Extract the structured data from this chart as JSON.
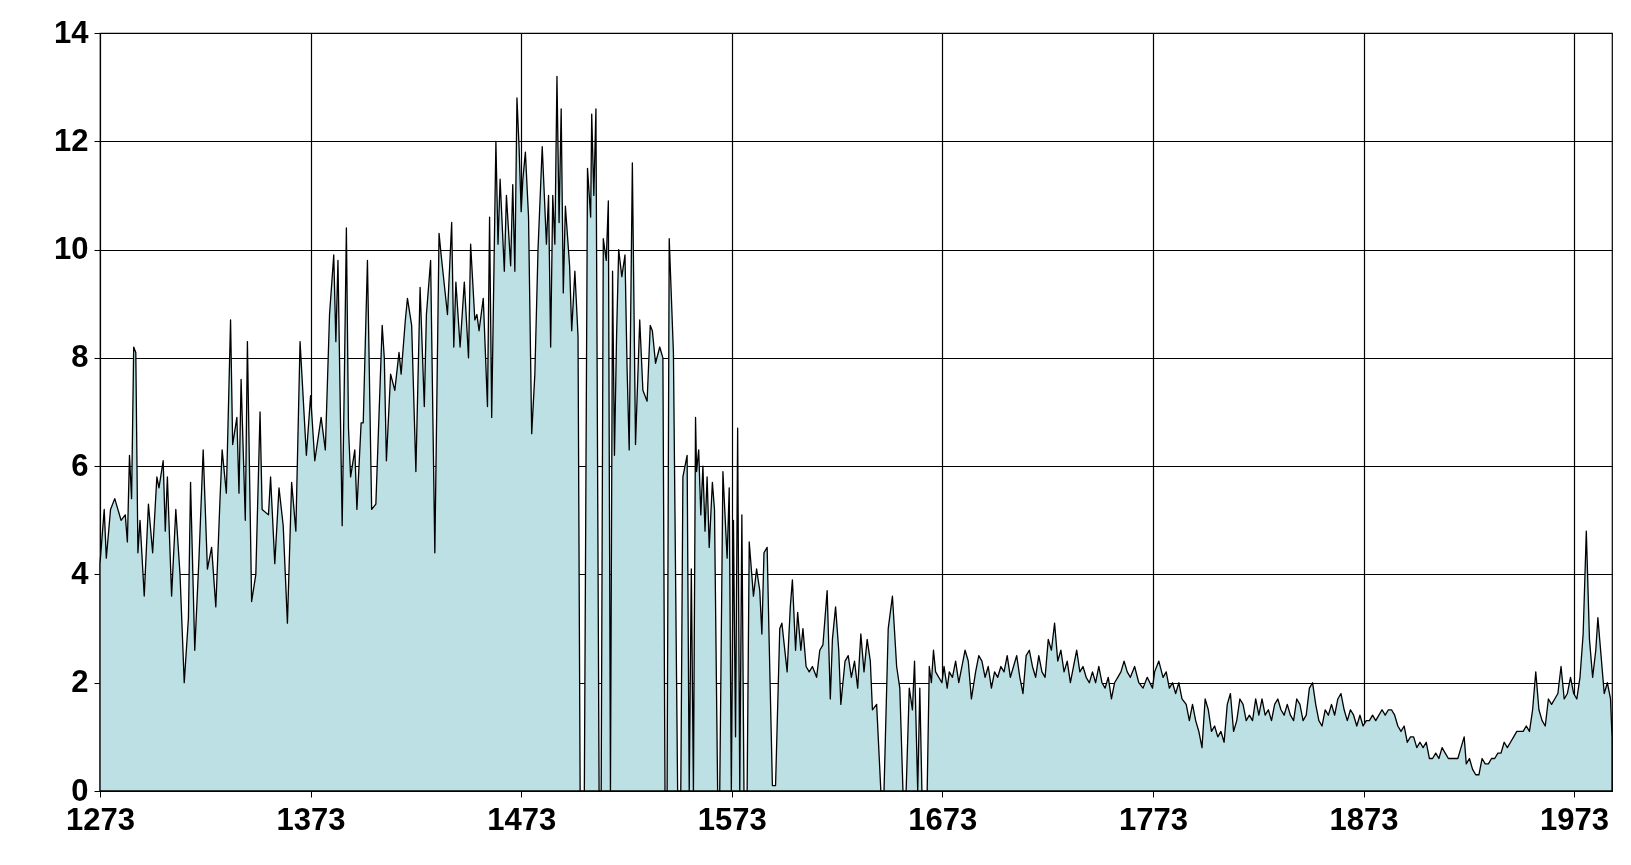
{
  "chart_data": {
    "type": "area",
    "xlim": [
      1273,
      1991
    ],
    "ylim": [
      0,
      14
    ],
    "xticks": [
      1273,
      1373,
      1473,
      1573,
      1673,
      1773,
      1873,
      1973
    ],
    "yticks": [
      0,
      2,
      4,
      6,
      8,
      10,
      12,
      14
    ],
    "grid": true,
    "x": [
      1273,
      1275,
      1276,
      1278,
      1280,
      1283,
      1285,
      1286,
      1287,
      1288,
      1289,
      1290,
      1291,
      1292,
      1294,
      1296,
      1298,
      1300,
      1301,
      1303,
      1304,
      1305,
      1307,
      1309,
      1311,
      1313,
      1315,
      1316,
      1318,
      1320,
      1322,
      1324,
      1326,
      1328,
      1330,
      1331,
      1333,
      1335,
      1336,
      1338,
      1339,
      1340,
      1342,
      1343,
      1345,
      1347,
      1349,
      1350,
      1353,
      1354,
      1356,
      1358,
      1360,
      1362,
      1364,
      1366,
      1368,
      1371,
      1373,
      1375,
      1378,
      1380,
      1382,
      1384,
      1385,
      1386,
      1388,
      1389,
      1390,
      1391,
      1392,
      1394,
      1395,
      1397,
      1398,
      1400,
      1402,
      1404,
      1407,
      1408,
      1409,
      1411,
      1413,
      1415,
      1416,
      1418,
      1419,
      1421,
      1423,
      1425,
      1427,
      1428,
      1430,
      1432,
      1434,
      1435,
      1438,
      1440,
      1441,
      1442,
      1444,
      1446,
      1448,
      1449,
      1451,
      1452,
      1453,
      1455,
      1457,
      1458,
      1459,
      1461,
      1462,
      1463,
      1465,
      1466,
      1468,
      1469,
      1470,
      1471,
      1472,
      1473,
      1473.8,
      1475,
      1476.5,
      1478,
      1479.5,
      1481,
      1483,
      1485,
      1486,
      1487,
      1488,
      1489,
      1490,
      1491,
      1492,
      1493,
      1494,
      1496,
      1497,
      1498.5,
      1500,
      1501,
      1503,
      1504.5,
      1506,
      1506.5,
      1507.5,
      1508.5,
      1510,
      1511,
      1512,
      1513.4,
      1514.4,
      1515.4,
      1516.4,
      1517.3,
      1518.3,
      1519.3,
      1520.8,
      1522.3,
      1523.3,
      1524.3,
      1525.8,
      1527.3,
      1529.3,
      1530.8,
      1532.8,
      1534.3,
      1535.3,
      1536.8,
      1538.8,
      1540.3,
      1541.3,
      1542.3,
      1543.3,
      1545.3,
      1547.3,
      1548.8,
      1549.8,
      1551.8,
      1552.8,
      1553.8,
      1554.8,
      1555.8,
      1556.3,
      1557.3,
      1558.3,
      1559.3,
      1560.3,
      1561.3,
      1562.3,
      1563.8,
      1564.8,
      1566.3,
      1567.3,
      1568.8,
      1570.8,
      1571.8,
      1572.8,
      1573.8,
      1574.8,
      1575.8,
      1576.8,
      1577.8,
      1578.8,
      1580.3,
      1581.3,
      1583.3,
      1584.8,
      1586.3,
      1587.3,
      1588.3,
      1589.8,
      1590.8,
      1592.3,
      1593.8,
      1595.8,
      1596.8,
      1599.3,
      1600.8,
      1601.8,
      1603.3,
      1604.3,
      1605.8,
      1606.8,
      1608.3,
      1609.8,
      1611.3,
      1613.3,
      1614.8,
      1616.3,
      1618.3,
      1619.8,
      1620.8,
      1622.3,
      1623.8,
      1624.8,
      1626.8,
      1628.3,
      1629.8,
      1631.3,
      1632.8,
      1634.3,
      1635.8,
      1637.3,
      1638.8,
      1639.8,
      1641.8,
      1643.8,
      1645.3,
      1647.3,
      1649.3,
      1651.3,
      1652.8,
      1654.3,
      1655.8,
      1657.3,
      1658.8,
      1659.8,
      1661.3,
      1662.3,
      1663.3,
      1664.3,
      1665.8,
      1666.8,
      1667.8,
      1668.8,
      1669.8,
      1672.8,
      1673.8,
      1675.3,
      1676.3,
      1677.8,
      1679.3,
      1680.8,
      1682.3,
      1683.8,
      1685.3,
      1686.8,
      1688.8,
      1690.3,
      1691.8,
      1693.3,
      1694.8,
      1696.3,
      1697.8,
      1699.3,
      1700.8,
      1702.3,
      1703.8,
      1705.3,
      1706.8,
      1708.3,
      1709.8,
      1711.3,
      1712.8,
      1714.3,
      1715.8,
      1717.3,
      1718.8,
      1720.3,
      1721.8,
      1723.3,
      1724.8,
      1726.3,
      1727.8,
      1729.3,
      1730.8,
      1732.3,
      1733.8,
      1735.3,
      1736.8,
      1738.3,
      1739.8,
      1741.3,
      1742.8,
      1744.3,
      1745.8,
      1747.3,
      1748.8,
      1750.3,
      1751.8,
      1753.3,
      1754.8,
      1756.3,
      1757.8,
      1759.3,
      1760.8,
      1762.3,
      1764.3,
      1766.3,
      1768.3,
      1770.3,
      1772.8,
      1773.8,
      1775.8,
      1777.8,
      1779.3,
      1780.8,
      1782.3,
      1783.8,
      1785.3,
      1786.8,
      1788.8,
      1790.3,
      1791.8,
      1793.3,
      1794.8,
      1796.3,
      1797.8,
      1799.3,
      1800.8,
      1802.3,
      1803.8,
      1805.3,
      1806.8,
      1808.3,
      1809.8,
      1811.3,
      1812.8,
      1814.3,
      1815.8,
      1817.3,
      1818.8,
      1820.3,
      1821.8,
      1823.3,
      1824.8,
      1826.3,
      1827.8,
      1829.3,
      1830.8,
      1832.3,
      1833.8,
      1835.3,
      1836.8,
      1838.3,
      1839.8,
      1841.3,
      1842.8,
      1844.3,
      1845.8,
      1847.3,
      1848.8,
      1850.3,
      1851.8,
      1853.3,
      1854.8,
      1856.3,
      1857.8,
      1859.3,
      1860.8,
      1862.3,
      1863.8,
      1865.3,
      1866.8,
      1868.3,
      1869.8,
      1871.3,
      1872.8,
      1874.3,
      1875.8,
      1877.3,
      1878.8,
      1880.3,
      1881.8,
      1883.3,
      1884.8,
      1886.3,
      1887.8,
      1889.3,
      1890.8,
      1892.3,
      1893.8,
      1895.3,
      1896.8,
      1898.3,
      1899.8,
      1901.3,
      1902.8,
      1904.3,
      1905.8,
      1907.3,
      1908.8,
      1910.3,
      1911.8,
      1913.3,
      1914.8,
      1916.3,
      1917.8,
      1919.3,
      1920.8,
      1921.8,
      1923.3,
      1924.8,
      1926.3,
      1927.8,
      1929.3,
      1930.8,
      1932.3,
      1933.8,
      1935.3,
      1936.8,
      1938.3,
      1939.8,
      1941.3,
      1942.8,
      1944.3,
      1945.8,
      1947.3,
      1948.8,
      1950.3,
      1951.8,
      1953.3,
      1954.8,
      1956.3,
      1957.8,
      1959.3,
      1960.8,
      1962.3,
      1963.8,
      1965.3,
      1966.8,
      1968.3,
      1969.8,
      1971.3,
      1972.8,
      1974.3,
      1975.8,
      1977.3,
      1978.8,
      1980.3,
      1981.8,
      1983.3,
      1984.3,
      1985.8,
      1987.3,
      1988.8,
      1990.3,
      1991
    ],
    "values": [
      4.2,
      5.2,
      4.3,
      5.2,
      5.4,
      5.0,
      5.1,
      4.6,
      6.2,
      5.4,
      8.2,
      8.1,
      4.4,
      5.0,
      3.6,
      5.3,
      4.4,
      5.8,
      5.6,
      6.1,
      4.8,
      5.8,
      3.6,
      5.2,
      4.0,
      2.0,
      3.2,
      5.7,
      2.6,
      4.3,
      6.3,
      4.1,
      4.5,
      3.4,
      5.4,
      6.3,
      5.5,
      8.7,
      6.4,
      6.9,
      5.5,
      7.6,
      5.0,
      8.3,
      3.5,
      4.0,
      7.0,
      5.2,
      5.1,
      5.8,
      4.2,
      5.6,
      4.9,
      3.1,
      5.7,
      4.8,
      8.3,
      6.2,
      7.3,
      6.1,
      6.9,
      6.3,
      8.8,
      9.9,
      8.3,
      9.8,
      4.9,
      7.5,
      10.4,
      6.7,
      5.8,
      6.3,
      5.2,
      6.8,
      6.8,
      9.8,
      5.2,
      5.3,
      8.6,
      8.0,
      6.1,
      7.7,
      7.4,
      8.1,
      7.7,
      8.7,
      9.1,
      8.6,
      5.9,
      9.3,
      7.1,
      8.8,
      9.8,
      4.4,
      10.3,
      9.9,
      8.8,
      10.5,
      8.2,
      9.4,
      8.2,
      9.4,
      8.0,
      10.1,
      8.7,
      8.8,
      8.5,
      9.1,
      7.1,
      10.6,
      6.9,
      12.0,
      10.1,
      11.3,
      9.6,
      11.0,
      9.7,
      11.2,
      9.6,
      12.8,
      11.9,
      10.7,
      11.3,
      11.8,
      10.6,
      6.6,
      7.7,
      10.0,
      11.9,
      10.1,
      11.0,
      8.2,
      11.0,
      10.1,
      13.2,
      10.5,
      12.6,
      9.2,
      10.8,
      9.7,
      8.5,
      9.6,
      8.4,
      0,
      0,
      11.5,
      10.6,
      12.5,
      11.0,
      12.6,
      0,
      0,
      10.2,
      9.8,
      10.9,
      0,
      9.6,
      6.2,
      8.4,
      10.0,
      9.5,
      9.9,
      7.8,
      6.3,
      11.6,
      6.4,
      8.7,
      7.4,
      7.2,
      8.6,
      8.5,
      7.9,
      8.2,
      8.0,
      0,
      0,
      10.2,
      8.1,
      0,
      0,
      5.8,
      6.2,
      0,
      4.1,
      0,
      6.9,
      5.9,
      6.3,
      5.1,
      6.0,
      4.8,
      5.8,
      4.5,
      5.7,
      5.2,
      0,
      0,
      5.9,
      4.3,
      5.6,
      0,
      5.0,
      1.0,
      6.7,
      0,
      5.1,
      0,
      0,
      4.6,
      3.6,
      4.1,
      3.7,
      2.9,
      4.4,
      4.5,
      2.7,
      0.1,
      0.1,
      3.0,
      3.1,
      2.2,
      3.4,
      3.9,
      2.6,
      3.3,
      2.6,
      3.0,
      2.3,
      2.2,
      2.3,
      2.1,
      2.6,
      2.7,
      3.7,
      1.7,
      2.8,
      3.4,
      2.6,
      1.6,
      2.4,
      2.5,
      2.1,
      2.4,
      1.9,
      2.9,
      2.2,
      2.8,
      2.4,
      1.5,
      1.6,
      0,
      0,
      3.0,
      3.6,
      2.3,
      1.9,
      0,
      0,
      1.9,
      1.5,
      2.4,
      0,
      1.9,
      0,
      0,
      0,
      2.3,
      2.0,
      2.6,
      2.2,
      2.0,
      2.3,
      1.9,
      2.2,
      2.1,
      2.4,
      2.0,
      2.3,
      2.6,
      2.4,
      1.7,
      2.2,
      2.5,
      2.4,
      2.1,
      2.3,
      1.9,
      2.2,
      2.1,
      2.3,
      2.2,
      2.5,
      2.1,
      2.3,
      2.5,
      2.1,
      1.8,
      2.5,
      2.6,
      2.3,
      2.1,
      2.5,
      2.2,
      2.1,
      2.8,
      2.6,
      3.1,
      2.4,
      2.6,
      2.2,
      2.4,
      2.0,
      2.3,
      2.6,
      2.2,
      2.3,
      2.1,
      2.0,
      2.2,
      2.0,
      2.3,
      2.0,
      1.9,
      2.1,
      1.7,
      2.0,
      2.1,
      2.2,
      2.4,
      2.2,
      2.1,
      2.3,
      2.0,
      1.9,
      2.1,
      1.9,
      2.2,
      2.4,
      2.1,
      2.2,
      1.9,
      2.0,
      1.8,
      2.0,
      1.7,
      1.6,
      1.3,
      1.6,
      1.3,
      1.1,
      0.8,
      1.7,
      1.5,
      1.1,
      1.2,
      1.0,
      1.1,
      0.9,
      1.6,
      1.8,
      1.1,
      1.3,
      1.7,
      1.6,
      1.3,
      1.4,
      1.3,
      1.7,
      1.4,
      1.7,
      1.4,
      1.5,
      1.3,
      1.6,
      1.7,
      1.5,
      1.4,
      1.6,
      1.4,
      1.3,
      1.7,
      1.6,
      1.3,
      1.4,
      1.9,
      2.0,
      1.6,
      1.3,
      1.2,
      1.5,
      1.4,
      1.6,
      1.4,
      1.7,
      1.8,
      1.5,
      1.3,
      1.5,
      1.4,
      1.2,
      1.4,
      1.2,
      1.3,
      1.3,
      1.4,
      1.3,
      1.4,
      1.5,
      1.4,
      1.5,
      1.5,
      1.4,
      1.2,
      1.1,
      1.2,
      0.9,
      1.0,
      1.0,
      0.8,
      0.9,
      0.8,
      0.9,
      0.6,
      0.6,
      0.7,
      0.6,
      0.8,
      0.7,
      0.6,
      0.6,
      0.6,
      0.6,
      0.8,
      1.0,
      0.5,
      0.6,
      0.4,
      0.3,
      0.3,
      0.6,
      0.5,
      0.5,
      0.6,
      0.6,
      0.7,
      0.7,
      0.9,
      0.8,
      0.9,
      1.0,
      1.1,
      1.1,
      1.1,
      1.2,
      1.1,
      1.5,
      2.2,
      1.5,
      1.3,
      1.2,
      1.7,
      1.6,
      1.7,
      1.8,
      2.3,
      1.7,
      1.8,
      2.1,
      1.8,
      1.7,
      2.1,
      2.9,
      4.8,
      2.8,
      2.1,
      2.6,
      3.2,
      2.5,
      1.8,
      2.0,
      1.7,
      1.0
    ],
    "color": "#bce0e3"
  }
}
